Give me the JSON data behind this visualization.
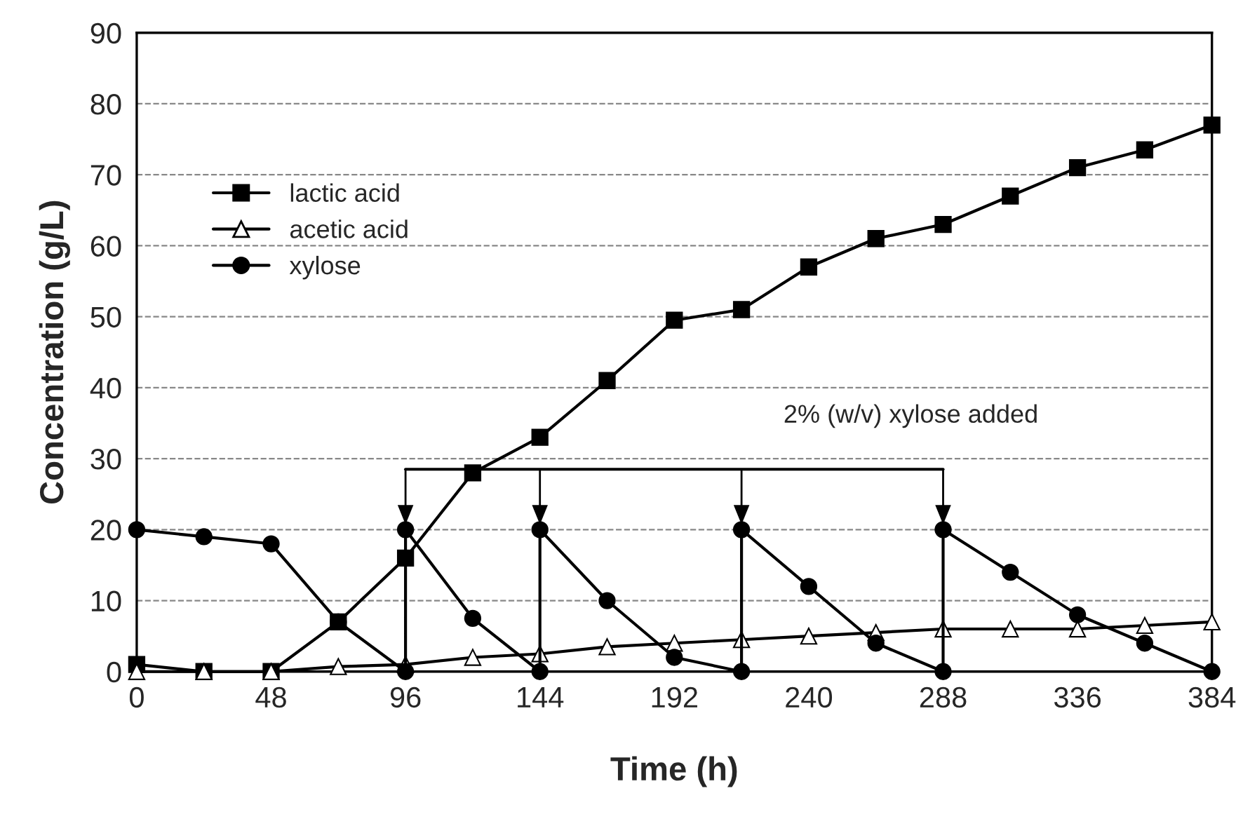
{
  "chart_data": {
    "type": "line",
    "xlabel": "Time (h)",
    "ylabel": "Concentration (g/L)",
    "xlim": [
      0,
      384
    ],
    "xticks": [
      0,
      48,
      96,
      144,
      192,
      240,
      288,
      336,
      384
    ],
    "ylim": [
      0,
      90
    ],
    "yticks": [
      0,
      10,
      20,
      30,
      40,
      50,
      60,
      70,
      80,
      90
    ],
    "grid": "y",
    "legend": "top left",
    "annotations": [
      "2% (w/v) xylose added"
    ],
    "series": [
      {
        "name": "lactic acid",
        "color": "#000000",
        "marker": "square",
        "x": [
          0,
          24,
          48,
          72,
          96,
          120,
          144,
          168,
          192,
          216,
          240,
          264,
          288,
          312,
          336,
          360,
          384
        ],
        "values": [
          1,
          0,
          0,
          7,
          16,
          28,
          33,
          41,
          49.5,
          51,
          57,
          61,
          63,
          67,
          71,
          73.5,
          77
        ]
      },
      {
        "name": "acetic acid",
        "color": "#000000",
        "marker": "triangle",
        "x": [
          0,
          24,
          48,
          72,
          96,
          120,
          144,
          168,
          192,
          216,
          240,
          264,
          288,
          312,
          336,
          360,
          384
        ],
        "values": [
          0,
          0,
          0,
          0.7,
          1,
          2,
          2.5,
          3.5,
          4,
          4.5,
          5,
          5.5,
          6,
          6,
          6,
          6.5,
          7
        ]
      },
      {
        "color": "#000000",
        "marker": "none",
        "x": [
          96,
          288
        ],
        "values": [
          28.5,
          28.5
        ]
      },
      {
        "name": "xylose",
        "color": "#000000",
        "marker": "circle",
        "x": [
          0,
          24,
          48,
          72,
          96,
          96,
          120,
          144,
          144,
          168,
          192,
          216,
          216,
          240,
          264,
          288,
          288,
          312,
          336,
          360,
          384
        ],
        "values": [
          20,
          19,
          18,
          7,
          0,
          20,
          7.5,
          0,
          20,
          10,
          2,
          0,
          20,
          12,
          4,
          0,
          20,
          14,
          8,
          4,
          0
        ]
      }
    ]
  }
}
